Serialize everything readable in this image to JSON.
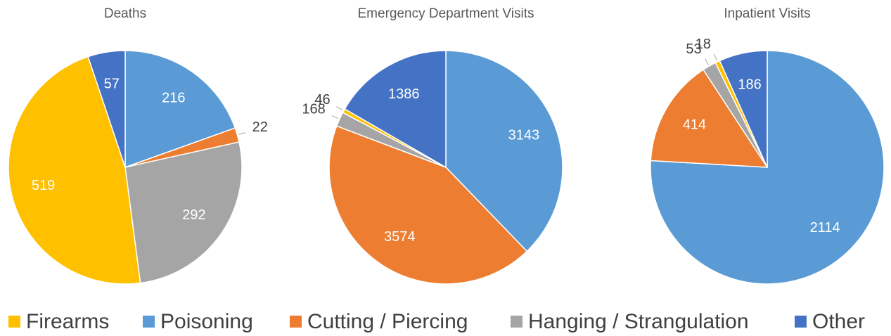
{
  "legend": [
    {
      "name": "Firearms",
      "color": "#ffc000"
    },
    {
      "name": "Poisoning",
      "color": "#5b9bd5"
    },
    {
      "name": "Cutting / Piercing",
      "color": "#ed7d31"
    },
    {
      "name": "Hanging / Strangulation",
      "color": "#a5a5a5"
    },
    {
      "name": "Other",
      "color": "#4472c4"
    }
  ],
  "chart_data": [
    {
      "type": "pie",
      "title": "Deaths",
      "values": [
        519,
        216,
        22,
        292,
        57
      ]
    },
    {
      "type": "pie",
      "title": "Emergency Department Visits",
      "values": [
        46,
        3143,
        3574,
        168,
        1386
      ]
    },
    {
      "type": "pie",
      "title": "Inpatient Visits",
      "values": [
        18,
        2114,
        414,
        53,
        186
      ]
    }
  ]
}
